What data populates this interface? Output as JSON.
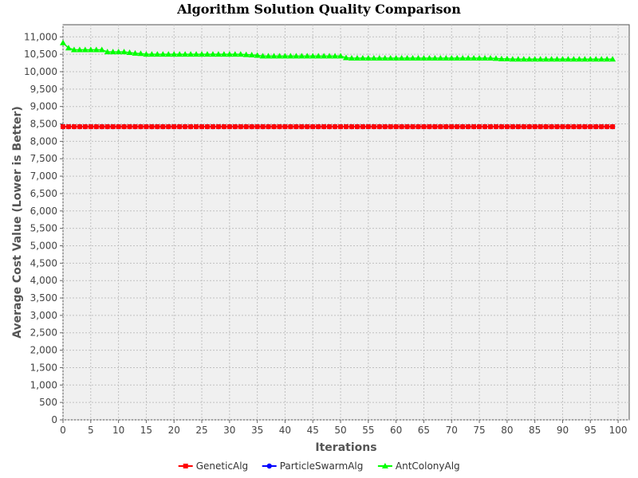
{
  "chart_data": {
    "type": "line",
    "title": "Algorithm Solution Quality Comparison",
    "xlabel": "Iterations",
    "ylabel": "Average Cost Value (Lower is Better)",
    "xlim": [
      0,
      102
    ],
    "ylim": [
      0,
      11350
    ],
    "x_ticks": [
      0,
      5,
      10,
      15,
      20,
      25,
      30,
      35,
      40,
      45,
      50,
      55,
      60,
      65,
      70,
      75,
      80,
      85,
      90,
      95,
      100
    ],
    "y_ticks": [
      0,
      500,
      1000,
      1500,
      2000,
      2500,
      3000,
      3500,
      4000,
      4500,
      5000,
      5500,
      6000,
      6500,
      7000,
      7500,
      8000,
      8500,
      9000,
      9500,
      10000,
      10500,
      11000
    ],
    "y_tick_labels": [
      "0",
      "500",
      "1,000",
      "1,500",
      "2,000",
      "2,500",
      "3,000",
      "3,500",
      "4,000",
      "4,500",
      "5,000",
      "5,500",
      "6,000",
      "6,500",
      "7,000",
      "7,500",
      "8,000",
      "8,500",
      "9,000",
      "9,500",
      "10,000",
      "10,500",
      "11,000"
    ],
    "grid": true,
    "legend_position": "bottom",
    "x_range": [
      0,
      99
    ],
    "series": [
      {
        "name": "GeneticAlg",
        "color": "#ff0000",
        "marker": "square",
        "values": [
          8420,
          8420,
          8420,
          8420,
          8420,
          8420,
          8420,
          8420,
          8420,
          8420,
          8420,
          8420,
          8420,
          8420,
          8420,
          8420,
          8420,
          8420,
          8420,
          8420,
          8420,
          8420,
          8420,
          8420,
          8420,
          8420,
          8420,
          8420,
          8420,
          8420,
          8420,
          8420,
          8420,
          8420,
          8420,
          8420,
          8420,
          8420,
          8420,
          8420,
          8420,
          8420,
          8420,
          8420,
          8420,
          8420,
          8420,
          8420,
          8420,
          8420,
          8420,
          8420,
          8420,
          8420,
          8420,
          8420,
          8420,
          8420,
          8420,
          8420,
          8420,
          8420,
          8420,
          8420,
          8420,
          8420,
          8420,
          8420,
          8420,
          8420,
          8420,
          8420,
          8420,
          8420,
          8420,
          8420,
          8420,
          8420,
          8420,
          8420,
          8420,
          8420,
          8420,
          8420,
          8420,
          8420,
          8420,
          8420,
          8420,
          8420,
          8420,
          8420,
          8420,
          8420,
          8420,
          8420,
          8420,
          8420,
          8420,
          8420
        ]
      },
      {
        "name": "ParticleSwarmAlg",
        "color": "#0000ff",
        "marker": "circle",
        "values": [
          8420,
          8420,
          8420,
          8420,
          8420,
          8420,
          8420,
          8420,
          8420,
          8420,
          8420,
          8420,
          8420,
          8420,
          8420,
          8420,
          8420,
          8420,
          8420,
          8420,
          8420,
          8420,
          8420,
          8420,
          8420,
          8420,
          8420,
          8420,
          8420,
          8420,
          8420,
          8420,
          8420,
          8420,
          8420,
          8420,
          8420,
          8420,
          8420,
          8420,
          8420,
          8420,
          8420,
          8420,
          8420,
          8420,
          8420,
          8420,
          8420,
          8420,
          8420,
          8420,
          8420,
          8420,
          8420,
          8420,
          8420,
          8420,
          8420,
          8420,
          8420,
          8420,
          8420,
          8420,
          8420,
          8420,
          8420,
          8420,
          8420,
          8420,
          8420,
          8420,
          8420,
          8420,
          8420,
          8420,
          8420,
          8420,
          8420,
          8420,
          8420,
          8420,
          8420,
          8420,
          8420,
          8420,
          8420,
          8420,
          8420,
          8420,
          8420,
          8420,
          8420,
          8420,
          8420,
          8420,
          8420,
          8420,
          8420,
          8420
        ]
      },
      {
        "name": "AntColonyAlg",
        "color": "#00ff00",
        "marker": "triangle",
        "values": [
          10830,
          10680,
          10630,
          10630,
          10630,
          10630,
          10630,
          10630,
          10570,
          10570,
          10570,
          10570,
          10550,
          10530,
          10520,
          10500,
          10500,
          10500,
          10500,
          10500,
          10500,
          10500,
          10500,
          10500,
          10500,
          10500,
          10500,
          10500,
          10500,
          10500,
          10500,
          10500,
          10500,
          10490,
          10480,
          10470,
          10450,
          10450,
          10450,
          10450,
          10450,
          10450,
          10450,
          10450,
          10450,
          10450,
          10450,
          10450,
          10450,
          10450,
          10450,
          10400,
          10390,
          10390,
          10390,
          10390,
          10390,
          10390,
          10390,
          10390,
          10390,
          10390,
          10390,
          10390,
          10390,
          10390,
          10390,
          10390,
          10390,
          10390,
          10390,
          10390,
          10390,
          10390,
          10390,
          10390,
          10390,
          10390,
          10380,
          10370,
          10370,
          10360,
          10360,
          10360,
          10360,
          10360,
          10360,
          10360,
          10360,
          10360,
          10360,
          10360,
          10360,
          10360,
          10360,
          10360,
          10360,
          10360,
          10360,
          10360
        ]
      }
    ]
  }
}
